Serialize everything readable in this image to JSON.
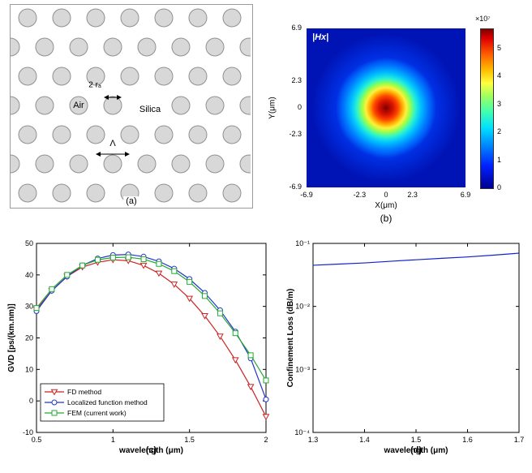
{
  "panel_a": {
    "caption": "(a)",
    "labels": {
      "air": "Air",
      "silica": "Silica",
      "hole_diameter": "2 rₐ",
      "pitch": "Λ"
    },
    "hole_fill": "#d8d8d8",
    "hole_stroke": "#909090"
  },
  "panel_b": {
    "caption": "(b)",
    "field_label": "|Hx|",
    "xlabel": "X(μm)",
    "ylabel": "Y(μm)",
    "axis_range": [
      -6.9,
      6.9
    ],
    "xticks": [
      -6.9,
      -2.3,
      0,
      2.3,
      6.9
    ],
    "yticks": [
      6.9,
      2.3,
      0,
      -2.3,
      -6.9
    ],
    "colorbar": {
      "exponent_label": "×10⁷",
      "ticks": [
        5,
        4,
        3,
        2,
        1,
        0
      ],
      "max_value": 5.7
    }
  },
  "chart_data": [
    {
      "id": "gvd",
      "type": "line",
      "caption": "(c)",
      "xlabel": "wavelength (μm)",
      "ylabel": "GVD [ps/(km.nm)]",
      "xlim": [
        0.5,
        2
      ],
      "ylim": [
        -10,
        50
      ],
      "xticks": [
        0.5,
        1,
        1.5,
        2
      ],
      "yticks": [
        -10,
        0,
        10,
        20,
        30,
        40,
        50
      ],
      "legend_position": "bottom-left",
      "x": [
        0.5,
        0.6,
        0.7,
        0.8,
        0.9,
        1.0,
        1.1,
        1.2,
        1.3,
        1.4,
        1.5,
        1.6,
        1.7,
        1.8,
        1.9,
        2.0
      ],
      "series": [
        {
          "name": "FD method",
          "color": "#cc2222",
          "marker": "triangle-down",
          "values": [
            29,
            35,
            39.5,
            42.5,
            44,
            44.8,
            44.5,
            43,
            40.5,
            37,
            32.5,
            27,
            20.5,
            13,
            4.5,
            -5
          ]
        },
        {
          "name": "Localized function method",
          "color": "#2233cc",
          "marker": "circle",
          "values": [
            28.5,
            35,
            39.5,
            43,
            45.2,
            46.3,
            46.5,
            45.8,
            44.3,
            42,
            38.7,
            34.3,
            28.8,
            22,
            13.5,
            0.5
          ]
        },
        {
          "name": "FEM (current work)",
          "color": "#22aa33",
          "marker": "square",
          "values": [
            29.5,
            35.5,
            40,
            43,
            44.8,
            45.5,
            45.6,
            45,
            43.5,
            41.2,
            37.8,
            33.3,
            27.8,
            21.5,
            14.5,
            6.5
          ]
        }
      ]
    },
    {
      "id": "confinement-loss",
      "type": "line",
      "yscale": "log",
      "caption": "(d)",
      "xlabel": "wavelength (μm)",
      "ylabel": "Confinement Loss (dB/m)",
      "xlim": [
        1.3,
        1.7
      ],
      "ylim": [
        0.0001,
        0.1
      ],
      "xticks": [
        1.3,
        1.4,
        1.5,
        1.6,
        1.7
      ],
      "yticks": [
        {
          "v": 0.1,
          "label": "10⁻¹"
        },
        {
          "v": 0.01,
          "label": "10⁻²"
        },
        {
          "v": 0.001,
          "label": "10⁻³"
        },
        {
          "v": 0.0001,
          "label": "10⁻⁴"
        }
      ],
      "x": [
        1.3,
        1.35,
        1.4,
        1.45,
        1.5,
        1.55,
        1.6,
        1.65,
        1.7
      ],
      "series": [
        {
          "name": "confinement loss",
          "color": "#1122cc",
          "marker": "none",
          "values": [
            0.045,
            0.047,
            0.049,
            0.052,
            0.055,
            0.058,
            0.061,
            0.065,
            0.07
          ]
        }
      ]
    }
  ]
}
